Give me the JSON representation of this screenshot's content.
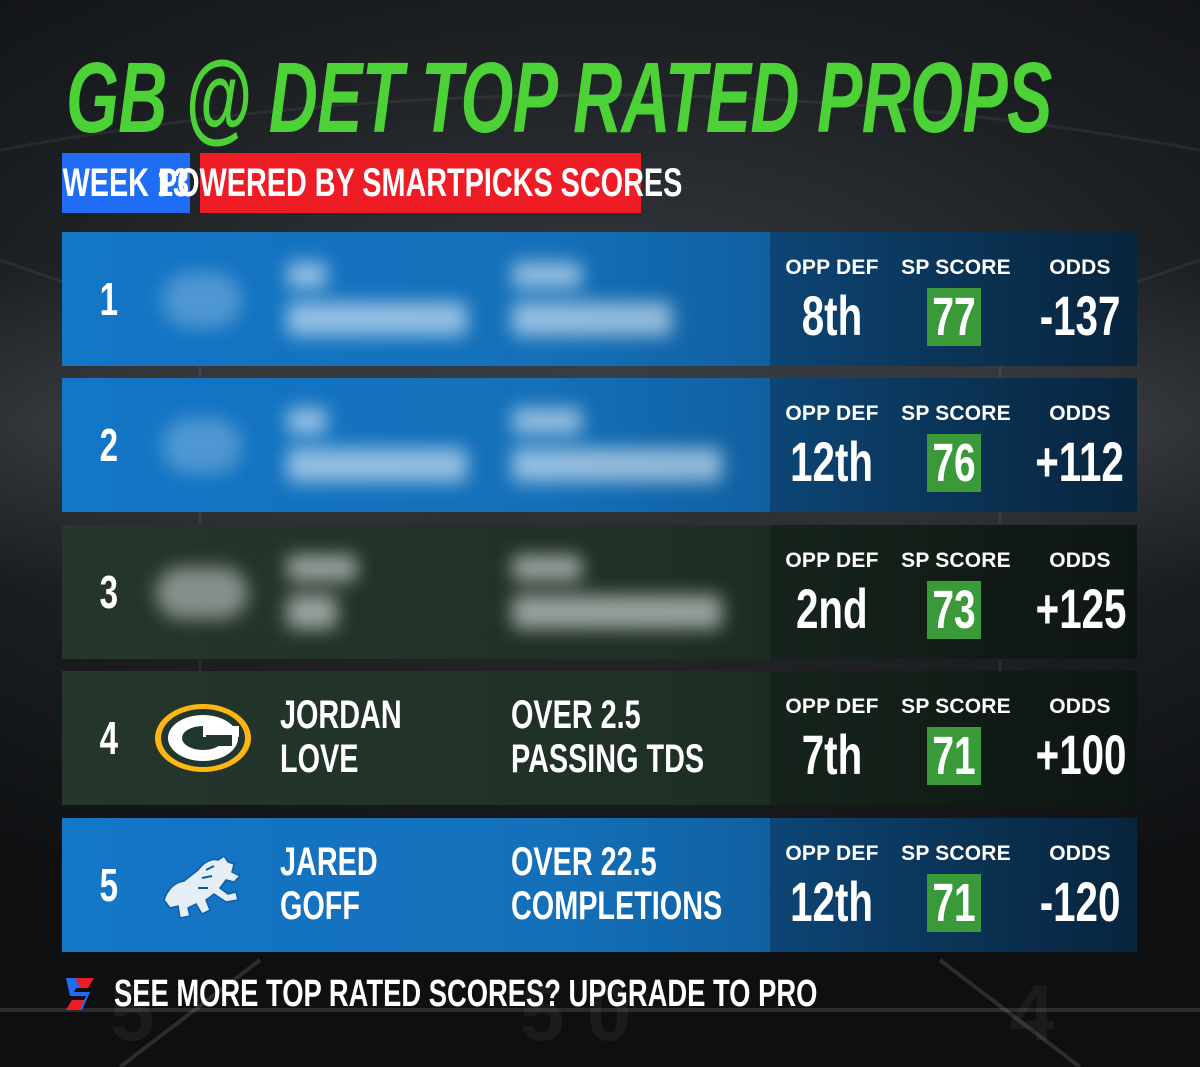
{
  "header": {
    "title": "GB @ DET TOP RATED PROPS",
    "week_badge": "WEEK 13",
    "powered_badge": "POWERED BY SMARTPICKS SCORES"
  },
  "stat_labels": {
    "opp_def": "OPP DEF",
    "sp_score": "SP SCORE",
    "odds": "ODDS"
  },
  "rows": [
    {
      "rank": "1",
      "opp_def": "8th",
      "sp_score": "77",
      "odds": "-137"
    },
    {
      "rank": "2",
      "opp_def": "12th",
      "sp_score": "76",
      "odds": "+112"
    },
    {
      "rank": "3",
      "opp_def": "2nd",
      "sp_score": "73",
      "odds": "+125"
    },
    {
      "rank": "4",
      "player_first": "JORDAN",
      "player_last": "LOVE",
      "prop_line1": "OVER 2.5",
      "prop_line2": "PASSING TDS",
      "opp_def": "7th",
      "sp_score": "71",
      "odds": "+100",
      "logo": "packers-g-logo-icon"
    },
    {
      "rank": "5",
      "player_first": "JARED",
      "player_last": "GOFF",
      "prop_line1": "OVER 22.5",
      "prop_line2": "COMPLETIONS",
      "opp_def": "12th",
      "sp_score": "71",
      "odds": "-120",
      "logo": "lions-logo-icon"
    }
  ],
  "footer": {
    "text": "SEE MORE TOP RATED SCORES? UPGRADE TO PRO",
    "logo": "smartpicks-logo-icon"
  },
  "colors": {
    "title_green": "#4cd137",
    "week_blue": "#1f6df5",
    "powered_red": "#ee1c25",
    "row_blue": "#1476c7",
    "row_green": "#25362c",
    "score_green": "#3a9a3a"
  }
}
